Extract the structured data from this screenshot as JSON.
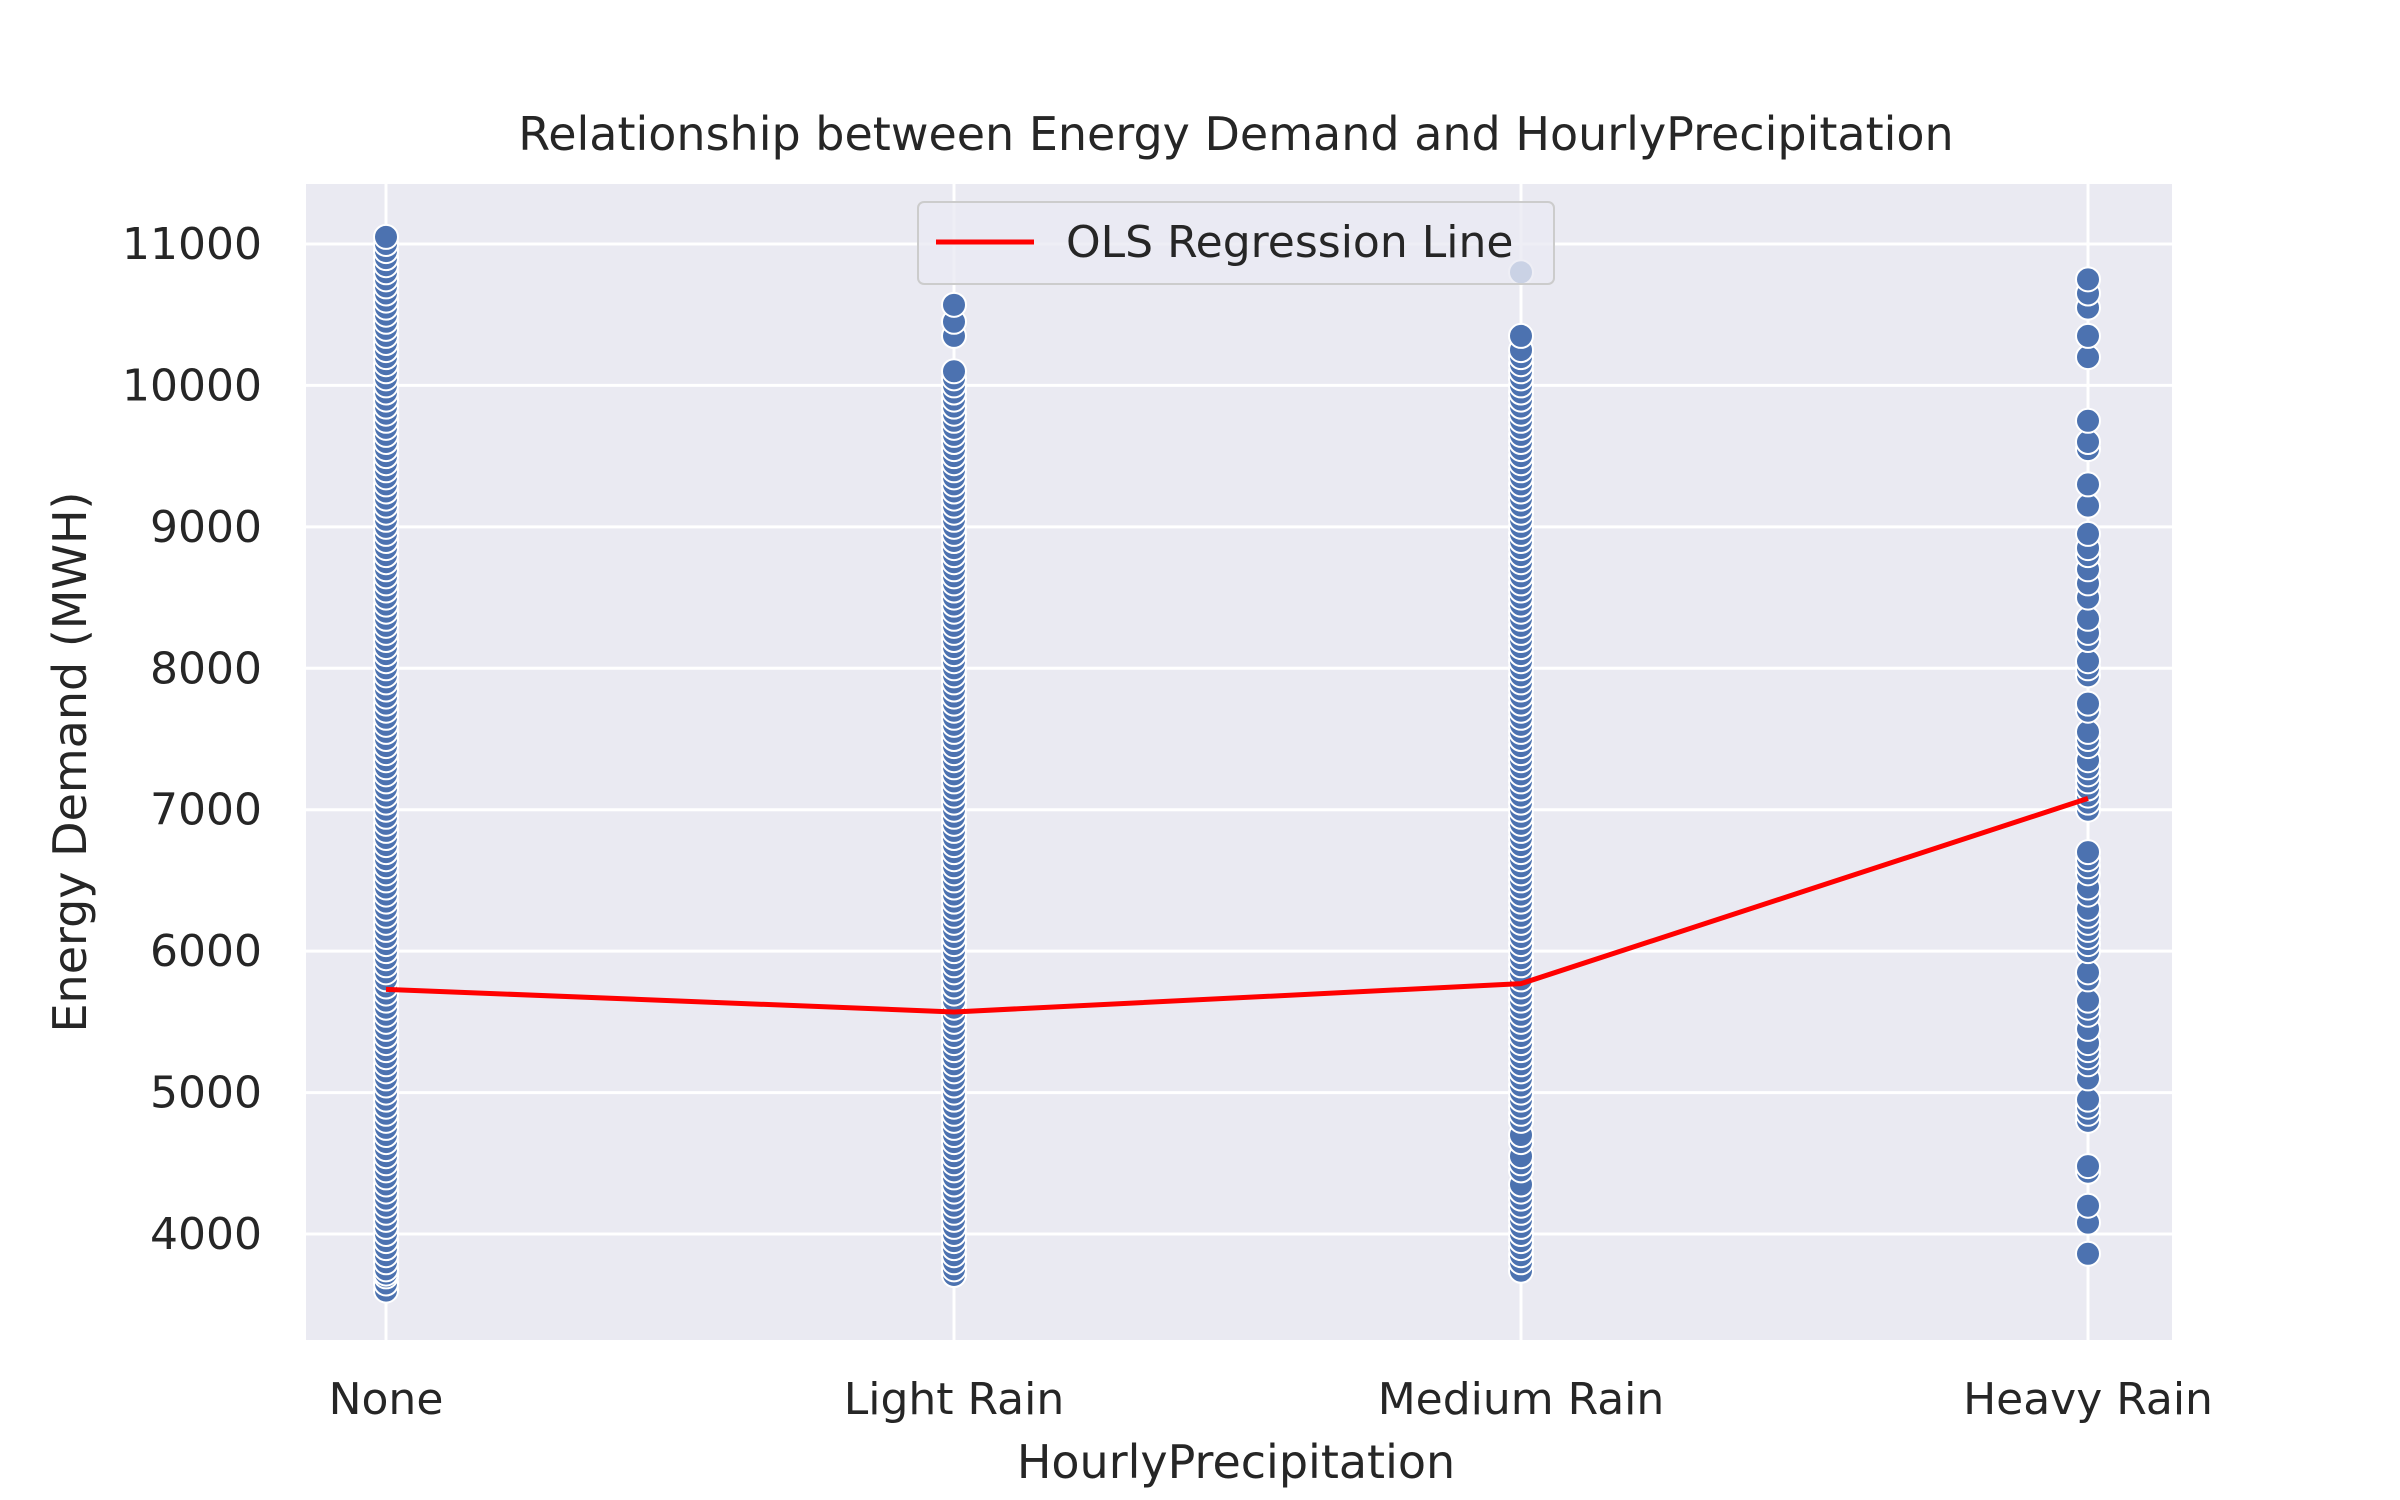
{
  "chart_data": {
    "type": "scatter",
    "title": "Relationship between Energy Demand and HourlyPrecipitation",
    "xlabel": "HourlyPrecipitation",
    "ylabel": "Energy Demand (MWH)",
    "categories": [
      "None",
      "Light Rain",
      "Medium Rain",
      "Heavy Rain"
    ],
    "yticks": [
      4000,
      5000,
      6000,
      7000,
      8000,
      9000,
      10000,
      11000
    ],
    "ytick_labels": [
      "4000",
      "5000",
      "6000",
      "7000",
      "8000",
      "9000",
      "10000",
      "11000"
    ],
    "ylim": [
      3230,
      11400
    ],
    "grid": true,
    "legend": {
      "placement": "top-center",
      "entries": [
        "OLS Regression Line"
      ]
    },
    "series": [
      {
        "kind": "scatter",
        "color": "#4c72b0",
        "points": [
          {
            "category": "None",
            "values": [
              3600,
              3650,
              3700,
              3720,
              3750,
              3800,
              3850,
              3900,
              3950,
              4000,
              4050,
              4100,
              4150,
              4200,
              4250,
              4300,
              4350,
              4400,
              4450,
              4500,
              4550,
              4600,
              4650,
              4700,
              4750,
              4800,
              4850,
              4900,
              4950,
              5000,
              5050,
              5100,
              5150,
              5200,
              5250,
              5300,
              5350,
              5400,
              5450,
              5500,
              5550,
              5600,
              5650,
              5700,
              5750,
              5800,
              5850,
              5900,
              5950,
              6000,
              6050,
              6100,
              6150,
              6200,
              6250,
              6300,
              6350,
              6400,
              6450,
              6500,
              6550,
              6600,
              6650,
              6700,
              6750,
              6800,
              6850,
              6900,
              6950,
              7000,
              7050,
              7100,
              7150,
              7200,
              7250,
              7300,
              7350,
              7400,
              7450,
              7500,
              7550,
              7600,
              7650,
              7700,
              7750,
              7800,
              7850,
              7900,
              7950,
              8000,
              8050,
              8100,
              8150,
              8200,
              8250,
              8300,
              8350,
              8400,
              8450,
              8500,
              8550,
              8600,
              8650,
              8700,
              8750,
              8800,
              8850,
              8900,
              8950,
              9000,
              9050,
              9100,
              9150,
              9200,
              9250,
              9300,
              9350,
              9400,
              9450,
              9500,
              9550,
              9600,
              9650,
              9700,
              9750,
              9800,
              9850,
              9900,
              9950,
              10000,
              10050,
              10100,
              10150,
              10200,
              10250,
              10300,
              10350,
              10400,
              10450,
              10500,
              10550,
              10600,
              10650,
              10700,
              10750,
              10800,
              10850,
              10900,
              10950,
              11000,
              11050
            ]
          },
          {
            "category": "Light Rain",
            "values": [
              3710,
              3750,
              3800,
              3850,
              3900,
              3950,
              4000,
              4050,
              4100,
              4150,
              4200,
              4250,
              4300,
              4350,
              4400,
              4450,
              4500,
              4550,
              4600,
              4650,
              4700,
              4750,
              4800,
              4850,
              4900,
              4950,
              5000,
              5050,
              5100,
              5150,
              5200,
              5250,
              5300,
              5350,
              5400,
              5450,
              5500,
              5550,
              5600,
              5650,
              5700,
              5750,
              5800,
              5850,
              5900,
              5950,
              6000,
              6050,
              6100,
              6150,
              6200,
              6250,
              6300,
              6350,
              6400,
              6450,
              6500,
              6550,
              6600,
              6650,
              6700,
              6750,
              6800,
              6850,
              6900,
              6950,
              7000,
              7050,
              7100,
              7150,
              7200,
              7250,
              7300,
              7350,
              7400,
              7450,
              7500,
              7550,
              7600,
              7650,
              7700,
              7750,
              7800,
              7850,
              7900,
              7950,
              8000,
              8050,
              8100,
              8150,
              8200,
              8250,
              8300,
              8350,
              8400,
              8450,
              8500,
              8550,
              8600,
              8650,
              8700,
              8750,
              8800,
              8850,
              8900,
              8950,
              9000,
              9050,
              9100,
              9150,
              9200,
              9250,
              9300,
              9350,
              9400,
              9450,
              9500,
              9550,
              9600,
              9650,
              9700,
              9750,
              9800,
              9850,
              9900,
              9950,
              10000,
              10050,
              10100,
              10350,
              10450,
              10570
            ]
          },
          {
            "category": "Medium Rain",
            "values": [
              3740,
              3800,
              3850,
              3900,
              3950,
              4000,
              4050,
              4100,
              4150,
              4200,
              4250,
              4300,
              4350,
              4450,
              4500,
              4550,
              4650,
              4700,
              4800,
              4850,
              4900,
              4950,
              5000,
              5050,
              5100,
              5150,
              5200,
              5250,
              5300,
              5350,
              5400,
              5450,
              5500,
              5550,
              5600,
              5650,
              5700,
              5750,
              5800,
              5850,
              5900,
              5950,
              6000,
              6050,
              6100,
              6150,
              6200,
              6250,
              6300,
              6350,
              6400,
              6450,
              6500,
              6550,
              6600,
              6650,
              6700,
              6750,
              6800,
              6850,
              6900,
              6950,
              7000,
              7050,
              7100,
              7150,
              7200,
              7250,
              7300,
              7350,
              7400,
              7450,
              7500,
              7550,
              7600,
              7650,
              7700,
              7750,
              7800,
              7850,
              7900,
              7950,
              8000,
              8050,
              8100,
              8150,
              8200,
              8250,
              8300,
              8350,
              8400,
              8450,
              8500,
              8550,
              8600,
              8650,
              8700,
              8750,
              8800,
              8850,
              8900,
              8950,
              9000,
              9050,
              9100,
              9150,
              9200,
              9250,
              9300,
              9350,
              9400,
              9450,
              9500,
              9550,
              9600,
              9650,
              9700,
              9750,
              9800,
              9850,
              9900,
              9950,
              10000,
              10050,
              10100,
              10150,
              10200,
              10250,
              10350,
              10800
            ]
          },
          {
            "category": "Heavy Rain",
            "values": [
              3860,
              4080,
              4200,
              4440,
              4480,
              4800,
              4850,
              4900,
              4950,
              5100,
              5200,
              5250,
              5300,
              5350,
              5450,
              5550,
              5600,
              5650,
              5800,
              5850,
              6000,
              6050,
              6100,
              6150,
              6200,
              6250,
              6300,
              6400,
              6450,
              6550,
              6600,
              6650,
              6700,
              7000,
              7050,
              7100,
              7150,
              7200,
              7250,
              7300,
              7350,
              7450,
              7500,
              7550,
              7700,
              7750,
              7950,
              8000,
              8050,
              8200,
              8250,
              8350,
              8500,
              8600,
              8700,
              8800,
              8850,
              8950,
              9150,
              9300,
              9550,
              9600,
              9750,
              10200,
              10350,
              10550,
              10650,
              10750
            ]
          }
        ]
      },
      {
        "kind": "line",
        "name": "OLS Regression Line",
        "color": "#ff0000",
        "x": [
          "None",
          "Light Rain",
          "Medium Rain",
          "Heavy Rain"
        ],
        "values": [
          5730,
          5570,
          5770,
          7080
        ]
      }
    ]
  }
}
